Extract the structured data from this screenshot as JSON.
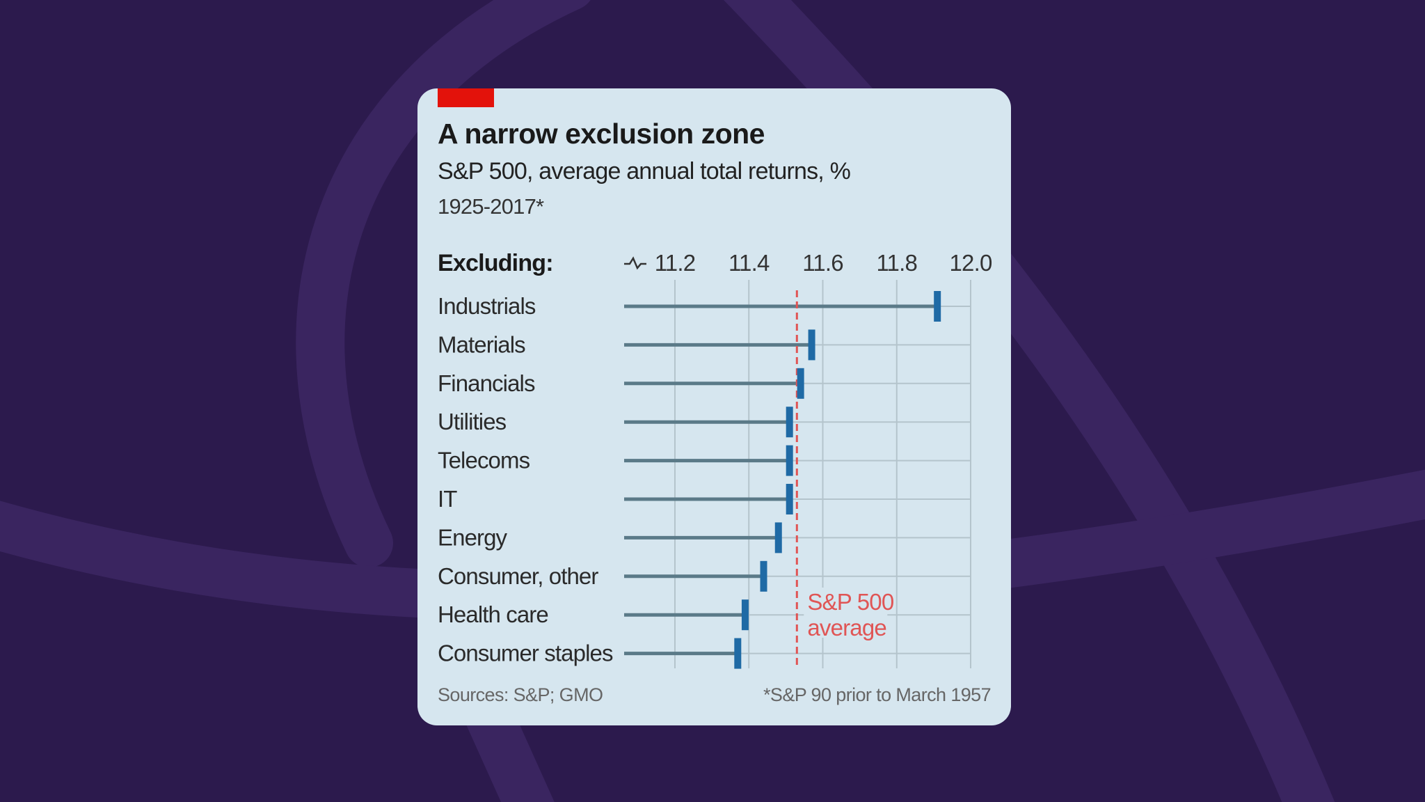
{
  "header": {
    "title": "A narrow exclusion zone",
    "subtitle": "S&P 500, average annual total returns, %",
    "period": "1925-2017*"
  },
  "footer": {
    "source": "Sources: S&P; GMO",
    "footnote": "*S&P 90 prior to March 1957"
  },
  "colors": {
    "background": "#2c1a4d",
    "card": "#d6e6ef",
    "accent_tab": "#e3120b",
    "marker": "#1f6aa5",
    "stem": "#5b7a88",
    "grid": "#b4c4cc",
    "average_line": "#e05555"
  },
  "chart_data": {
    "type": "dot",
    "title": "A narrow exclusion zone",
    "subtitle": "S&P 500, average annual total returns, %",
    "ylabel": "Excluding:",
    "xlabel": "",
    "axis_break": true,
    "xlim": [
      11.2,
      12.0
    ],
    "xticks": [
      11.2,
      11.4,
      11.6,
      11.8,
      12.0
    ],
    "xtick_labels": [
      "11.2",
      "11.4",
      "11.6",
      "11.8",
      "12.0"
    ],
    "grid": true,
    "categories": [
      "Industrials",
      "Materials",
      "Financials",
      "Utilities",
      "Telecoms",
      "IT",
      "Energy",
      "Consumer, other",
      "Health care",
      "Consumer staples"
    ],
    "values": [
      11.91,
      11.57,
      11.54,
      11.51,
      11.51,
      11.51,
      11.48,
      11.44,
      11.39,
      11.37
    ],
    "reference_line": {
      "value": 11.53,
      "label_line1": "S&P 500",
      "label_line2": "average"
    }
  }
}
